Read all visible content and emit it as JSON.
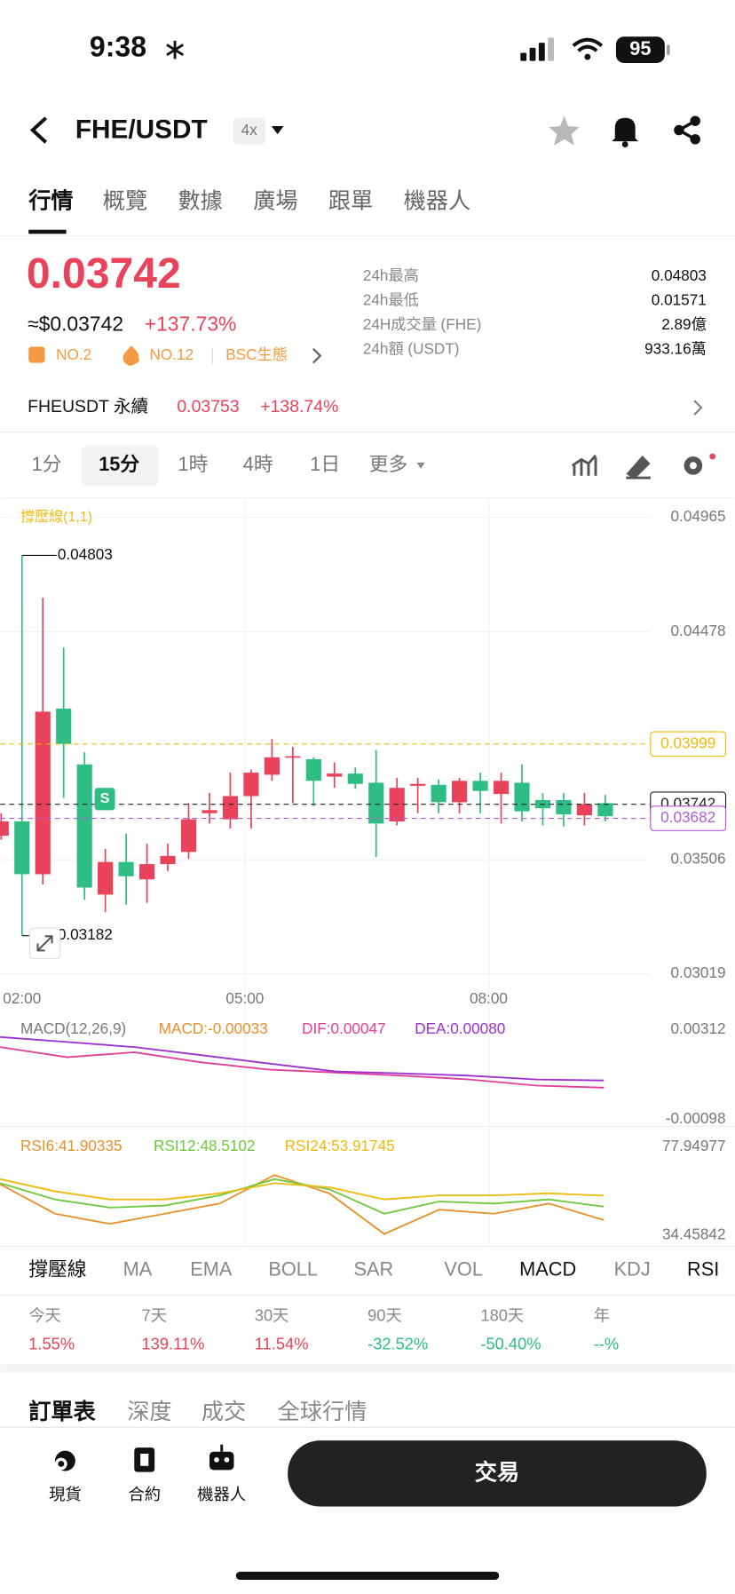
{
  "status": {
    "time": "9:38",
    "battery": "95"
  },
  "header": {
    "pair": "FHE/USDT",
    "leverage": "4x"
  },
  "tabs": [
    "行情",
    "概覽",
    "數據",
    "廣場",
    "跟單",
    "機器人"
  ],
  "price": {
    "last": "0.03742",
    "usd": "≈$0.03742",
    "change": "+137.73%",
    "badges": [
      "NO.2",
      "NO.12",
      "BSC生態"
    ]
  },
  "stats": [
    {
      "label": "24h最高",
      "value": "0.04803"
    },
    {
      "label": "24h最低",
      "value": "0.01571"
    },
    {
      "label": "24H成交量 (FHE)",
      "value": "2.89億"
    },
    {
      "label": "24h額 (USDT)",
      "value": "933.16萬"
    }
  ],
  "perp": {
    "name": "FHEUSDT 永續",
    "price": "0.03753",
    "change": "+138.74%"
  },
  "intervals": [
    "1分",
    "15分",
    "1時",
    "4時",
    "1日",
    "更多"
  ],
  "chart_data": {
    "type": "candlestick",
    "indicator": "撐壓線(1,1)",
    "candles": [
      {
        "open": 0.03608,
        "high": 0.03704,
        "low": 0.03591,
        "close": 0.03669
      },
      {
        "open": 0.03669,
        "high": 0.04803,
        "low": 0.03182,
        "close": 0.03444
      },
      {
        "open": 0.03444,
        "high": 0.04623,
        "low": 0.034,
        "close": 0.04137
      },
      {
        "open": 0.0415,
        "high": 0.0441,
        "low": 0.03769,
        "close": 0.03999
      },
      {
        "open": 0.03912,
        "high": 0.03964,
        "low": 0.03335,
        "close": 0.03387
      },
      {
        "open": 0.03357,
        "high": 0.03552,
        "low": 0.03283,
        "close": 0.03496
      },
      {
        "open": 0.03496,
        "high": 0.03617,
        "low": 0.03314,
        "close": 0.03435
      },
      {
        "open": 0.03422,
        "high": 0.03574,
        "low": 0.03322,
        "close": 0.03487
      },
      {
        "open": 0.03487,
        "high": 0.03574,
        "low": 0.03457,
        "close": 0.03522
      },
      {
        "open": 0.03539,
        "high": 0.03747,
        "low": 0.03509,
        "close": 0.03678
      },
      {
        "open": 0.03704,
        "high": 0.0379,
        "low": 0.0366,
        "close": 0.03717
      },
      {
        "open": 0.03678,
        "high": 0.03877,
        "low": 0.03639,
        "close": 0.03777
      },
      {
        "open": 0.03777,
        "high": 0.0389,
        "low": 0.03639,
        "close": 0.03877
      },
      {
        "open": 0.03868,
        "high": 0.0402,
        "low": 0.03842,
        "close": 0.03942
      },
      {
        "open": 0.03942,
        "high": 0.03986,
        "low": 0.03747,
        "close": 0.03947
      },
      {
        "open": 0.03934,
        "high": 0.03942,
        "low": 0.03734,
        "close": 0.03842
      },
      {
        "open": 0.0386,
        "high": 0.03921,
        "low": 0.03812,
        "close": 0.03873
      },
      {
        "open": 0.03873,
        "high": 0.03899,
        "low": 0.03808,
        "close": 0.03829
      },
      {
        "open": 0.03834,
        "high": 0.03973,
        "low": 0.03517,
        "close": 0.0366
      },
      {
        "open": 0.03669,
        "high": 0.03855,
        "low": 0.03652,
        "close": 0.03812
      },
      {
        "open": 0.03821,
        "high": 0.03855,
        "low": 0.03704,
        "close": 0.03829
      },
      {
        "open": 0.03825,
        "high": 0.03847,
        "low": 0.03704,
        "close": 0.03751
      },
      {
        "open": 0.03751,
        "high": 0.03855,
        "low": 0.03704,
        "close": 0.03842
      },
      {
        "open": 0.03842,
        "high": 0.03877,
        "low": 0.03704,
        "close": 0.03799
      },
      {
        "open": 0.03786,
        "high": 0.03877,
        "low": 0.0366,
        "close": 0.03842
      },
      {
        "open": 0.03834,
        "high": 0.03912,
        "low": 0.03669,
        "close": 0.03712
      },
      {
        "open": 0.0376,
        "high": 0.0379,
        "low": 0.03652,
        "close": 0.03725
      },
      {
        "open": 0.0376,
        "high": 0.0379,
        "low": 0.03647,
        "close": 0.03699
      },
      {
        "open": 0.03695,
        "high": 0.0379,
        "low": 0.03652,
        "close": 0.03743
      },
      {
        "open": 0.03747,
        "high": 0.03782,
        "low": 0.03669,
        "close": 0.03691
      }
    ],
    "up_color": "#e8435a",
    "down_color": "#2ebd85",
    "ylim": [
      0.03019,
      0.04965
    ],
    "yticks": [
      0.04965,
      0.04478,
      0.03506,
      0.03019
    ],
    "xticks": [
      {
        "value": 1,
        "label": "02:00"
      },
      {
        "value": 11.7,
        "label": "05:00"
      },
      {
        "value": 23.4,
        "label": "08:00"
      }
    ],
    "annotations": [
      {
        "value": 0.04803,
        "label": "0.04803"
      },
      {
        "value": 0.03182,
        "label": "0.03182"
      }
    ],
    "reference_lines": [
      {
        "value": 0.03999,
        "label": "0.03999",
        "color": "#f0b90b"
      },
      {
        "value": 0.03742,
        "label": "0.03742",
        "color": "#222222"
      },
      {
        "value": 0.03682,
        "label": "0.03682",
        "color": "#b05cd6"
      }
    ],
    "marker": "S"
  },
  "macd": {
    "label": "MACD(12,26,9)",
    "macd": "MACD:-0.00033",
    "dif": "DIF:0.00047",
    "dea": "DEA:0.00080",
    "ylim": [
      -0.00098,
      0.00312
    ],
    "yticks": [
      0.00312,
      -0.00098
    ],
    "series": [
      {
        "name": "DIF",
        "color": "#e0409a",
        "values": [
          0.00233,
          0.00186,
          0.00209,
          0.00163,
          0.0013,
          0.00116,
          0.00102,
          0.00084,
          0.00056,
          0.00047
        ]
      },
      {
        "name": "DEA",
        "color": "#9b30d0",
        "values": [
          0.00279,
          0.00256,
          0.00233,
          0.00196,
          0.00158,
          0.00121,
          0.00112,
          0.00102,
          0.00084,
          0.0008
        ]
      }
    ]
  },
  "rsi": {
    "labels": [
      "RSI6:41.90335",
      "RSI12:48.5102",
      "RSI24:53.91745"
    ],
    "ylim": [
      34.45842,
      77.94977
    ],
    "yticks": [
      77.94977,
      34.45842
    ],
    "series": [
      {
        "name": "RSI6",
        "color": "#e8902a",
        "values": [
          59.5,
          45,
          40,
          45,
          50,
          64,
          55,
          35,
          47,
          45,
          50,
          41.90335
        ]
      },
      {
        "name": "RSI12",
        "color": "#6cc93c",
        "values": [
          60,
          52,
          48,
          49,
          54,
          62,
          57,
          45,
          51,
          50,
          52,
          48.5102
        ]
      },
      {
        "name": "RSI24",
        "color": "#f0b90b",
        "values": [
          62,
          56,
          52,
          52,
          55,
          60,
          58,
          52,
          54,
          54,
          55,
          53.91745
        ]
      }
    ]
  },
  "indicator_tabs": [
    "撐壓線",
    "MA",
    "EMA",
    "BOLL",
    "SAR",
    "VOL",
    "MACD",
    "KDJ",
    "RSI"
  ],
  "returns": [
    {
      "label": "今天",
      "value": "1.55%"
    },
    {
      "label": "7天",
      "value": "139.11%"
    },
    {
      "label": "30天",
      "value": "11.54%"
    },
    {
      "label": "90天",
      "value": "-32.52%"
    },
    {
      "label": "180天",
      "value": "-50.40%"
    },
    {
      "label": "年",
      "value": "--%"
    }
  ],
  "order_tabs": [
    "訂單表",
    "深度",
    "成交",
    "全球行情"
  ],
  "nav": [
    "現貨",
    "合約",
    "機器人"
  ],
  "trade_button": "交易"
}
